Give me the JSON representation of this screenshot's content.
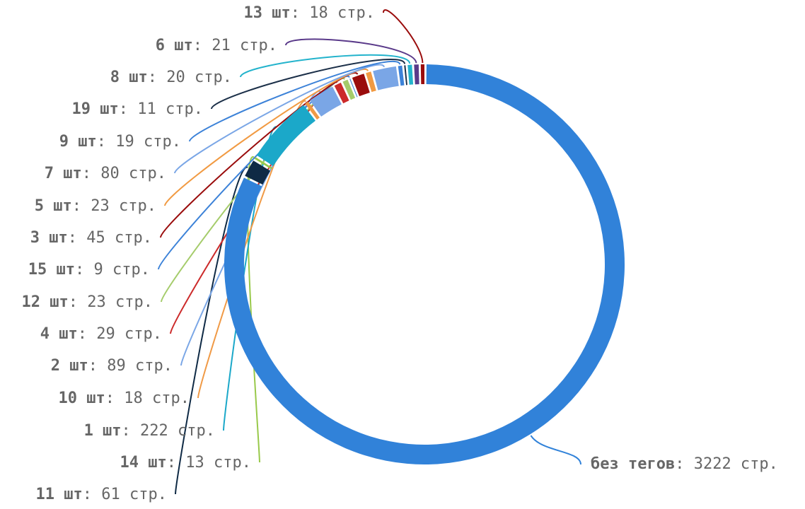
{
  "chart_data": {
    "type": "pie",
    "variant": "donut",
    "unit": "стр.",
    "slices": [
      {
        "name": "без тегов",
        "value": 3222,
        "color": "#3182d9"
      },
      {
        "name": "11 шт",
        "value": 61,
        "color": "#0f2a45"
      },
      {
        "name": "14 шт",
        "value": 13,
        "color": "#98c94a"
      },
      {
        "name": "1 шт",
        "value": 222,
        "color": "#1ba8c9"
      },
      {
        "name": "10 шт",
        "value": 18,
        "color": "#f09a46"
      },
      {
        "name": "2 шт",
        "value": 89,
        "color": "#7aa6e6"
      },
      {
        "name": "4 шт",
        "value": 29,
        "color": "#cc2a2a"
      },
      {
        "name": "12 шт",
        "value": 23,
        "color": "#a5cc6b"
      },
      {
        "name": "15 шт",
        "value": 9,
        "color": "#3c82d8"
      },
      {
        "name": "3 шт",
        "value": 45,
        "color": "#9a0c0c"
      },
      {
        "name": "5 шт",
        "value": 23,
        "color": "#f19a42"
      },
      {
        "name": "7 шт",
        "value": 80,
        "color": "#7aa6e6"
      },
      {
        "name": "9 шт",
        "value": 19,
        "color": "#3c82d8"
      },
      {
        "name": "19 шт",
        "value": 11,
        "color": "#1b2f48"
      },
      {
        "name": "8 шт",
        "value": 20,
        "color": "#23b3cc"
      },
      {
        "name": "6 шт",
        "value": 21,
        "color": "#5a3a8a"
      },
      {
        "name": "13 шт",
        "value": 18,
        "color": "#9a0c0c"
      }
    ]
  }
}
